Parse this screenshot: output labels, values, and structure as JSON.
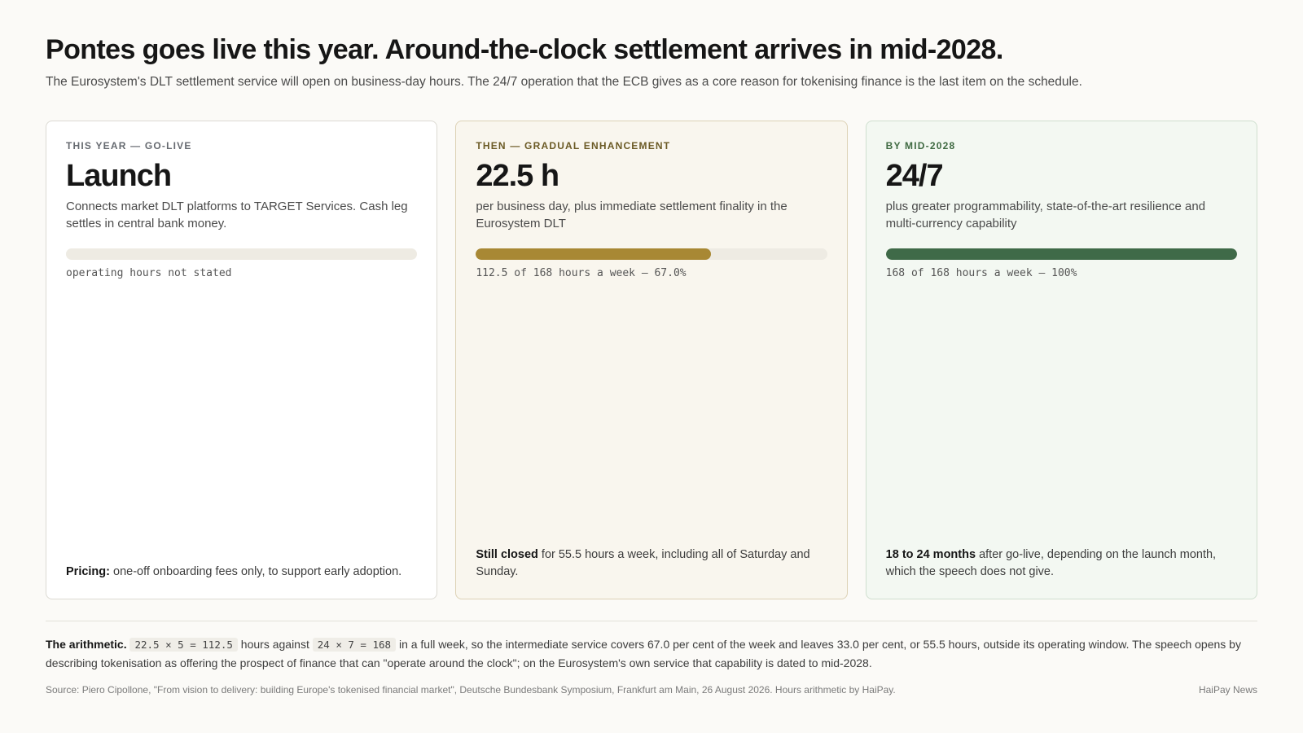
{
  "headline": "Pontes goes live this year. Around-the-clock settlement arrives in mid-2028.",
  "dek": "The Eurosystem's DLT settlement service will open on business-day hours. The 24/7 operation that the ECB gives as a core reason for tokenising finance is the last item on the schedule.",
  "cards": [
    {
      "eyebrow": "THIS YEAR — GO-LIVE",
      "big": "Launch",
      "desc": "Connects market DLT platforms to TARGET Services. Cash leg settles in central bank money.",
      "coverage_fraction": null,
      "caption": "operating hours not stated",
      "foot_bold": "Pricing:",
      "foot_text": " one-off onboarding fees only, to support early adoption."
    },
    {
      "eyebrow": "THEN — GRADUAL ENHANCEMENT",
      "big": "22.5 h",
      "desc": "per business day, plus immediate settlement finality in the Eurosystem DLT",
      "coverage_fraction": 0.67,
      "caption": "112.5 of 168 hours a week — 67.0%",
      "foot_bold": "Still closed",
      "foot_text": " for 55.5 hours a week, including all of Saturday and Sunday."
    },
    {
      "eyebrow": "BY MID-2028",
      "big": "24/7",
      "desc": "plus greater programmability, state-of-the-art resilience and multi-currency capability",
      "coverage_fraction": 1.0,
      "caption": "168 of 168 hours a week — 100%",
      "foot_bold": "18 to 24 months",
      "foot_text": " after go-live, depending on the launch month, which the speech does not give."
    }
  ],
  "arithmetic": {
    "label": "The arithmetic.",
    "code1": "22.5 × 5 = 112.5",
    "text1": " hours against ",
    "code2": "24 × 7 = 168",
    "text2": " in a full week, so the intermediate service covers 67.0 per cent of the week and leaves 33.0 per cent, or 55.5 hours, outside its operating window. The speech opens by describing tokenisation as offering the prospect of finance that can \"operate around the clock\"; on the Eurosystem's own service that capability is dated to mid-2028."
  },
  "source": "Source: Piero Cipollone, \"From vision to delivery: building Europe's tokenised financial market\", Deutsche Bundesbank Symposium, Frankfurt am Main, 26 August 2026. Hours arithmetic by HaiPay.",
  "brand": "HaiPay News",
  "colors": {
    "mid_accent": "#a88834",
    "right_accent": "#3f6a48"
  }
}
